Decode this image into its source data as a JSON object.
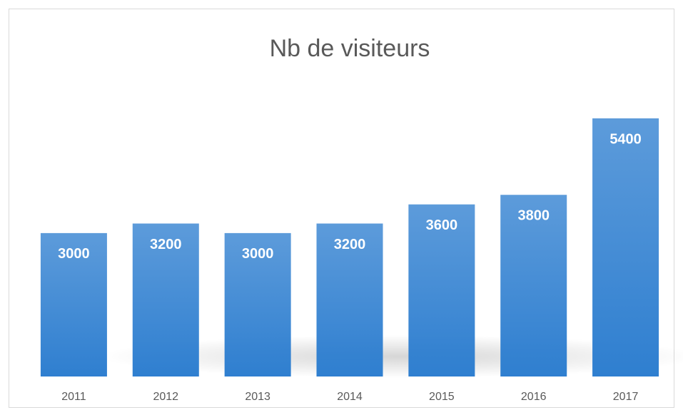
{
  "chart_data": {
    "type": "bar",
    "title": "Nb de visiteurs",
    "categories": [
      "2011",
      "2012",
      "2013",
      "2014",
      "2015",
      "2016",
      "2017"
    ],
    "values": [
      3000,
      3200,
      3000,
      3200,
      3600,
      3800,
      5400
    ],
    "color": "#2f7fd0"
  }
}
